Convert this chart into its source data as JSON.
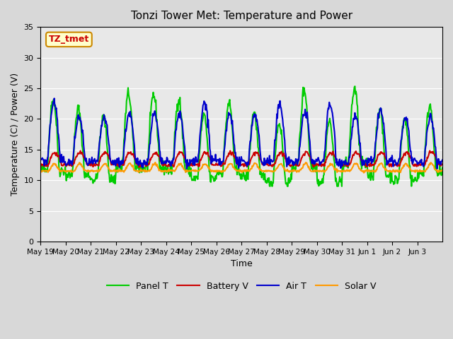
{
  "title": "Tonzi Tower Met: Temperature and Power",
  "xlabel": "Time",
  "ylabel": "Temperature (C) / Power (V)",
  "ylim": [
    0,
    35
  ],
  "yticks": [
    0,
    5,
    10,
    15,
    20,
    25,
    30,
    35
  ],
  "annotation": "TZ_tmet",
  "annotation_color": "#cc0000",
  "annotation_bg": "#ffffcc",
  "annotation_border": "#cc8800",
  "colors": {
    "panel_t": "#00cc00",
    "battery_v": "#cc0000",
    "air_t": "#0000cc",
    "solar_v": "#ff9900"
  },
  "line_width": 1.5,
  "n_days": 16,
  "x_tick_labels": [
    "May 19",
    "May 20",
    "May 21",
    "May 22",
    "May 23",
    "May 24",
    "May 25",
    "May 26",
    "May 27",
    "May 28",
    "May 29",
    "May 30",
    "May 31",
    "Jun 1",
    "Jun 2",
    "Jun 3"
  ]
}
